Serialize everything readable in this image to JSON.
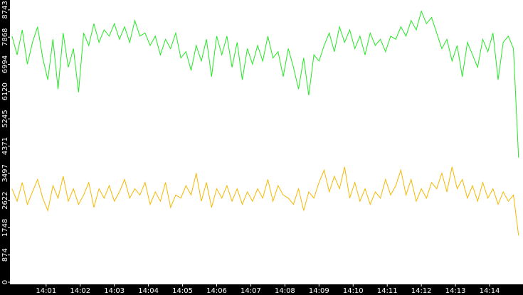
{
  "chart_data": {
    "type": "line",
    "x": [
      0,
      0.15,
      0.3,
      0.45,
      0.6,
      0.75,
      0.9,
      1.05,
      1.2,
      1.35,
      1.5,
      1.65,
      1.8,
      1.95,
      2.1,
      2.25,
      2.4,
      2.55,
      2.7,
      2.85,
      3,
      3.15,
      3.3,
      3.45,
      3.6,
      3.75,
      3.9,
      4.05,
      4.2,
      4.35,
      4.5,
      4.65,
      4.8,
      4.95,
      5.1,
      5.25,
      5.4,
      5.55,
      5.7,
      5.85,
      6,
      6.15,
      6.3,
      6.45,
      6.6,
      6.75,
      6.9,
      7.05,
      7.2,
      7.35,
      7.5,
      7.65,
      7.8,
      7.95,
      8.1,
      8.25,
      8.4,
      8.55,
      8.7,
      8.85,
      9,
      9.15,
      9.3,
      9.45,
      9.6,
      9.75,
      9.9,
      10.05,
      10.2,
      10.35,
      10.5,
      10.65,
      10.8,
      10.95,
      11.1,
      11.25,
      11.4,
      11.55,
      11.7,
      11.85,
      12,
      12.15,
      12.3,
      12.45,
      12.6,
      12.75,
      12.9,
      13.05,
      13.2,
      13.35,
      13.5,
      13.65,
      13.8,
      13.95,
      14.1,
      14.25,
      14.4,
      14.55,
      14.7,
      14.85
    ],
    "series": [
      {
        "color": "#22e822",
        "values": [
          7900,
          7300,
          8100,
          7000,
          7700,
          8200,
          7200,
          6500,
          7800,
          6200,
          8000,
          6900,
          7500,
          6100,
          8000,
          7600,
          8300,
          7700,
          8100,
          7900,
          8300,
          7800,
          8200,
          7700,
          8400,
          7900,
          8000,
          7600,
          7900,
          7300,
          7800,
          7500,
          8000,
          7200,
          7400,
          6800,
          7600,
          7100,
          7800,
          6600,
          7900,
          7300,
          7900,
          6900,
          7700,
          6500,
          7500,
          7000,
          7600,
          7100,
          7900,
          7200,
          7400,
          6600,
          7500,
          6900,
          6200,
          7200,
          6000,
          7300,
          7100,
          7600,
          8000,
          7400,
          8200,
          7700,
          8100,
          7500,
          7900,
          7300,
          8000,
          7600,
          7800,
          7400,
          7900,
          7800,
          8200,
          7900,
          8400,
          8100,
          8700,
          8300,
          8500,
          8000,
          7500,
          7800,
          7100,
          7600,
          6600,
          7700,
          7300,
          6900,
          7800,
          7400,
          8000,
          6500,
          7700,
          7900,
          7500,
          4000
        ]
      },
      {
        "color": "#f5b800",
        "values": [
          3000,
          2600,
          3200,
          2500,
          2900,
          3300,
          2700,
          2300,
          3100,
          2700,
          3400,
          2600,
          3000,
          2500,
          2800,
          3200,
          2400,
          3000,
          2700,
          3100,
          2600,
          2900,
          3300,
          2700,
          3000,
          2800,
          3200,
          2500,
          2900,
          2600,
          3200,
          2400,
          2800,
          2700,
          3100,
          2800,
          3500,
          2600,
          3200,
          2400,
          3000,
          2700,
          3100,
          2600,
          3000,
          2500,
          2900,
          2600,
          3000,
          2700,
          3300,
          2600,
          3100,
          2800,
          2700,
          2500,
          3000,
          2300,
          2900,
          2700,
          3200,
          3600,
          2900,
          3400,
          3000,
          3700,
          2700,
          3200,
          2600,
          3000,
          2500,
          2900,
          2700,
          3300,
          2800,
          3100,
          3600,
          2800,
          3300,
          2600,
          3000,
          2700,
          3200,
          3000,
          3500,
          2900,
          3700,
          3000,
          3300,
          2700,
          3100,
          2600,
          3200,
          2700,
          3000,
          2500,
          2900,
          2600,
          2800,
          1500
        ]
      }
    ],
    "xlim": [
      -0.06,
      14.98
    ],
    "xticks": [
      {
        "value": 1,
        "label": "14:01"
      },
      {
        "value": 2,
        "label": "14:02"
      },
      {
        "value": 3,
        "label": "14:03"
      },
      {
        "value": 4,
        "label": "14:04"
      },
      {
        "value": 5,
        "label": "14:05"
      },
      {
        "value": 6,
        "label": "14:06"
      },
      {
        "value": 7,
        "label": "14:07"
      },
      {
        "value": 8,
        "label": "14:08"
      },
      {
        "value": 9,
        "label": "14:09"
      },
      {
        "value": 10,
        "label": "14:10"
      },
      {
        "value": 11,
        "label": "14:11"
      },
      {
        "value": 12,
        "label": "14:12"
      },
      {
        "value": 13,
        "label": "14:13"
      },
      {
        "value": 14,
        "label": "14:14"
      }
    ],
    "ylim": [
      0,
      9060
    ],
    "yticks": [
      0,
      874,
      1748,
      2622,
      3497,
      4371,
      5245,
      6120,
      6994,
      7868,
      8743
    ]
  }
}
